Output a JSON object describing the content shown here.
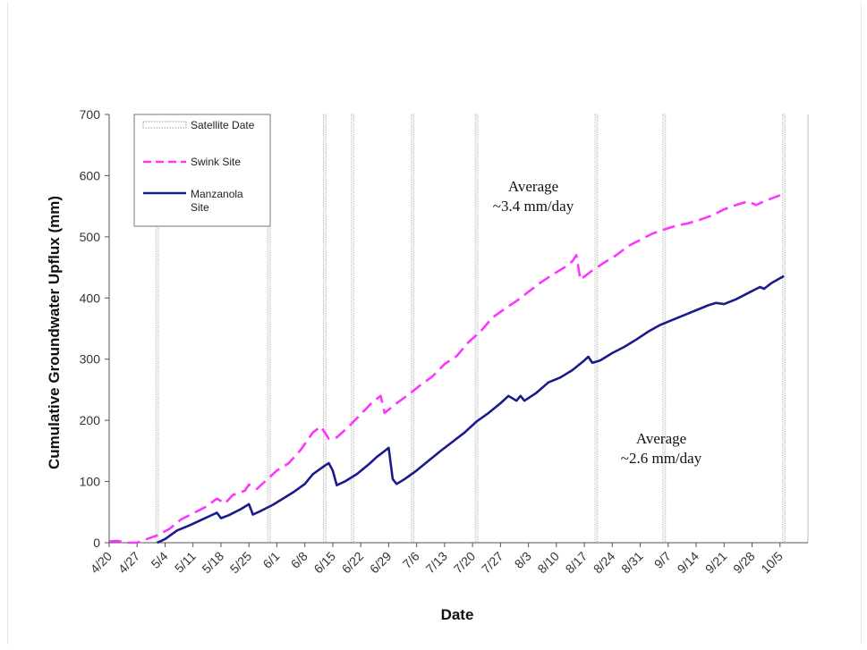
{
  "chart_data": {
    "type": "line",
    "title": "",
    "xlabel": "Date",
    "ylabel": "Cumulative Groundwater Upflux (mm)",
    "ylim": [
      0,
      700
    ],
    "yticks": [
      0,
      100,
      200,
      300,
      400,
      500,
      600,
      700
    ],
    "grid": false,
    "legend_position": "top-left",
    "x_tick_labels": [
      "4/20",
      "4/27",
      "5/4",
      "5/11",
      "5/18",
      "5/25",
      "6/1",
      "6/8",
      "6/15",
      "6/22",
      "6/29",
      "7/6",
      "7/13",
      "7/20",
      "7/27",
      "8/3",
      "8/10",
      "8/17",
      "8/24",
      "8/31",
      "9/7",
      "9/14",
      "9/21",
      "9/28",
      "10/5"
    ],
    "satellite_dates": [
      "5/2",
      "5/30",
      "6/13",
      "6/20",
      "7/5",
      "7/21",
      "8/20",
      "9/6",
      "10/6"
    ],
    "annotations": [
      {
        "text_line1": "Average",
        "text_line2": "~3.4 mm/day"
      },
      {
        "text_line1": "Average",
        "text_line2": "~2.6 mm/day"
      }
    ],
    "series": [
      {
        "name": "Satellite Date",
        "style": "dotted-vertical",
        "color": "#999999"
      },
      {
        "name": "Swink Site",
        "style": "dashed",
        "color": "#ff33ff",
        "points": [
          [
            "4/20",
            2
          ],
          [
            "4/22",
            3
          ],
          [
            "4/24",
            0
          ],
          [
            "4/27",
            0
          ],
          [
            "4/29",
            5
          ],
          [
            "5/2",
            12
          ],
          [
            "5/5",
            22
          ],
          [
            "5/8",
            38
          ],
          [
            "5/11",
            48
          ],
          [
            "5/14",
            58
          ],
          [
            "5/17",
            72
          ],
          [
            "5/19",
            64
          ],
          [
            "5/21",
            78
          ],
          [
            "5/24",
            85
          ],
          [
            "5/25",
            95
          ],
          [
            "5/27",
            88
          ],
          [
            "5/29",
            100
          ],
          [
            "6/1",
            118
          ],
          [
            "6/4",
            130
          ],
          [
            "6/7",
            152
          ],
          [
            "6/10",
            180
          ],
          [
            "6/12",
            190
          ],
          [
            "6/14",
            170
          ],
          [
            "6/16",
            172
          ],
          [
            "6/19",
            190
          ],
          [
            "6/22",
            210
          ],
          [
            "6/25",
            230
          ],
          [
            "6/27",
            240
          ],
          [
            "6/28",
            212
          ],
          [
            "7/1",
            228
          ],
          [
            "7/4",
            242
          ],
          [
            "7/7",
            258
          ],
          [
            "7/10",
            272
          ],
          [
            "7/13",
            292
          ],
          [
            "7/16",
            305
          ],
          [
            "7/19",
            328
          ],
          [
            "7/22",
            345
          ],
          [
            "7/25",
            368
          ],
          [
            "7/28",
            382
          ],
          [
            "7/31",
            395
          ],
          [
            "8/3",
            410
          ],
          [
            "8/6",
            425
          ],
          [
            "8/9",
            438
          ],
          [
            "8/12",
            450
          ],
          [
            "8/14",
            460
          ],
          [
            "8/15",
            470
          ],
          [
            "8/16",
            430
          ],
          [
            "8/19",
            445
          ],
          [
            "8/22",
            458
          ],
          [
            "8/25",
            470
          ],
          [
            "8/28",
            485
          ],
          [
            "8/31",
            495
          ],
          [
            "9/3",
            505
          ],
          [
            "9/6",
            512
          ],
          [
            "9/9",
            518
          ],
          [
            "9/12",
            522
          ],
          [
            "9/15",
            528
          ],
          [
            "9/18",
            535
          ],
          [
            "9/21",
            545
          ],
          [
            "9/24",
            552
          ],
          [
            "9/27",
            558
          ],
          [
            "9/29",
            552
          ],
          [
            "10/1",
            558
          ],
          [
            "10/5",
            568
          ]
        ]
      },
      {
        "name": "Manzanola Site",
        "style": "solid",
        "color": "#1a1a8c",
        "points": [
          [
            "5/2",
            0
          ],
          [
            "5/4",
            6
          ],
          [
            "5/7",
            20
          ],
          [
            "5/10",
            28
          ],
          [
            "5/13",
            37
          ],
          [
            "5/16",
            46
          ],
          [
            "5/17",
            49
          ],
          [
            "5/18",
            40
          ],
          [
            "5/20",
            45
          ],
          [
            "5/23",
            55
          ],
          [
            "5/25",
            63
          ],
          [
            "5/26",
            46
          ],
          [
            "5/28",
            52
          ],
          [
            "5/31",
            62
          ],
          [
            "6/3",
            74
          ],
          [
            "6/5",
            82
          ],
          [
            "6/8",
            96
          ],
          [
            "6/10",
            112
          ],
          [
            "6/13",
            126
          ],
          [
            "6/14",
            130
          ],
          [
            "6/15",
            118
          ],
          [
            "6/16",
            94
          ],
          [
            "6/18",
            100
          ],
          [
            "6/21",
            112
          ],
          [
            "6/24",
            128
          ],
          [
            "6/26",
            140
          ],
          [
            "6/28",
            150
          ],
          [
            "6/29",
            155
          ],
          [
            "6/30",
            104
          ],
          [
            "7/1",
            96
          ],
          [
            "7/3",
            104
          ],
          [
            "7/6",
            118
          ],
          [
            "7/9",
            134
          ],
          [
            "7/12",
            150
          ],
          [
            "7/15",
            165
          ],
          [
            "7/18",
            180
          ],
          [
            "7/21",
            198
          ],
          [
            "7/24",
            212
          ],
          [
            "7/27",
            228
          ],
          [
            "7/29",
            240
          ],
          [
            "7/31",
            232
          ],
          [
            "8/1",
            240
          ],
          [
            "8/2",
            232
          ],
          [
            "8/5",
            245
          ],
          [
            "8/8",
            262
          ],
          [
            "8/11",
            270
          ],
          [
            "8/14",
            282
          ],
          [
            "8/17",
            298
          ],
          [
            "8/18",
            304
          ],
          [
            "8/19",
            294
          ],
          [
            "8/21",
            298
          ],
          [
            "8/24",
            310
          ],
          [
            "8/27",
            320
          ],
          [
            "8/30",
            332
          ],
          [
            "9/2",
            345
          ],
          [
            "9/5",
            356
          ],
          [
            "9/8",
            364
          ],
          [
            "9/11",
            372
          ],
          [
            "9/14",
            380
          ],
          [
            "9/17",
            388
          ],
          [
            "9/19",
            392
          ],
          [
            "9/21",
            390
          ],
          [
            "9/24",
            398
          ],
          [
            "9/27",
            408
          ],
          [
            "9/30",
            418
          ],
          [
            "10/1",
            415
          ],
          [
            "10/3",
            425
          ],
          [
            "10/6",
            436
          ]
        ]
      }
    ]
  }
}
